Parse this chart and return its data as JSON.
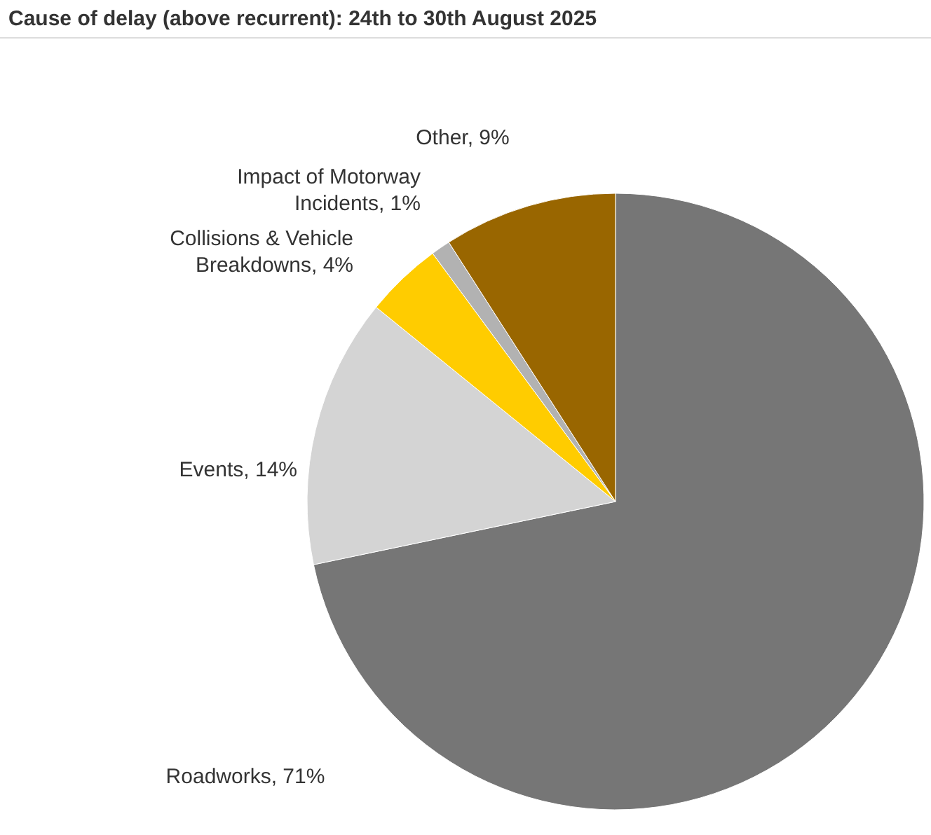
{
  "chart_data": {
    "type": "pie",
    "title": "Cause of delay (above recurrent): 24th to 30th August 2025",
    "categories": [
      "Roadworks",
      "Events",
      "Collisions & Vehicle Breakdowns",
      "Impact of Motorway Incidents",
      "Other"
    ],
    "values": [
      71,
      14,
      4,
      1,
      9
    ],
    "value_labels": [
      "71%",
      "14%",
      "4%",
      "1%",
      "9%"
    ],
    "colors": [
      "#767676",
      "#d4d4d4",
      "#ffcc00",
      "#b2b2b2",
      "#996600"
    ],
    "legend": false
  }
}
